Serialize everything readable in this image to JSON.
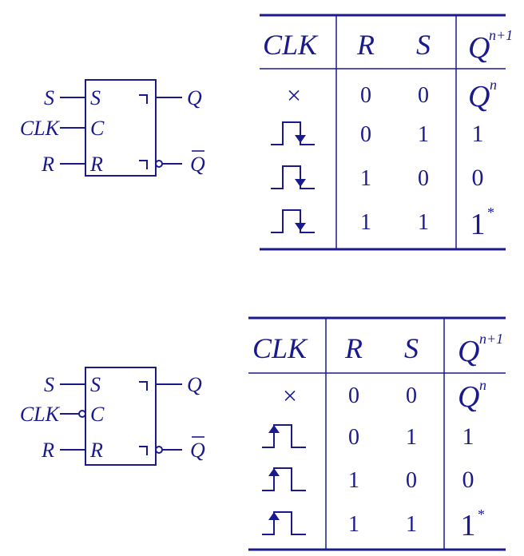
{
  "ink_color": "#1a1a8c",
  "diagrams": [
    {
      "trigger": "falling-edge",
      "clock_inverted": false,
      "symbol": {
        "inputs": [
          "S",
          "CLK",
          "R"
        ],
        "pins": [
          "S",
          "C",
          "R"
        ],
        "outputs": [
          "Q",
          "Q"
        ]
      },
      "table": {
        "headers": {
          "clk": "CLK",
          "r": "R",
          "s": "S",
          "q": "Q",
          "q_sup": "n+1"
        },
        "rows": [
          {
            "clk": "×",
            "r": "0",
            "s": "0",
            "q": "Q",
            "q_sup": "n"
          },
          {
            "clk": "falling-edge-pulse-icon",
            "r": "0",
            "s": "1",
            "q": "1",
            "q_sup": ""
          },
          {
            "clk": "falling-edge-pulse-icon",
            "r": "1",
            "s": "0",
            "q": "0",
            "q_sup": ""
          },
          {
            "clk": "falling-edge-pulse-icon",
            "r": "1",
            "s": "1",
            "q": "1",
            "q_sup": "*"
          }
        ]
      }
    },
    {
      "trigger": "rising-edge",
      "clock_inverted": true,
      "symbol": {
        "inputs": [
          "S",
          "CLK",
          "R"
        ],
        "pins": [
          "S",
          "C",
          "R"
        ],
        "outputs": [
          "Q",
          "Q"
        ]
      },
      "table": {
        "headers": {
          "clk": "CLK",
          "r": "R",
          "s": "S",
          "q": "Q",
          "q_sup": "n+1"
        },
        "rows": [
          {
            "clk": "×",
            "r": "0",
            "s": "0",
            "q": "Q",
            "q_sup": "n"
          },
          {
            "clk": "rising-edge-pulse-icon",
            "r": "0",
            "s": "1",
            "q": "1",
            "q_sup": ""
          },
          {
            "clk": "rising-edge-pulse-icon",
            "r": "1",
            "s": "0",
            "q": "0",
            "q_sup": ""
          },
          {
            "clk": "rising-edge-pulse-icon",
            "r": "1",
            "s": "1",
            "q": "1",
            "q_sup": "*"
          }
        ]
      }
    }
  ]
}
